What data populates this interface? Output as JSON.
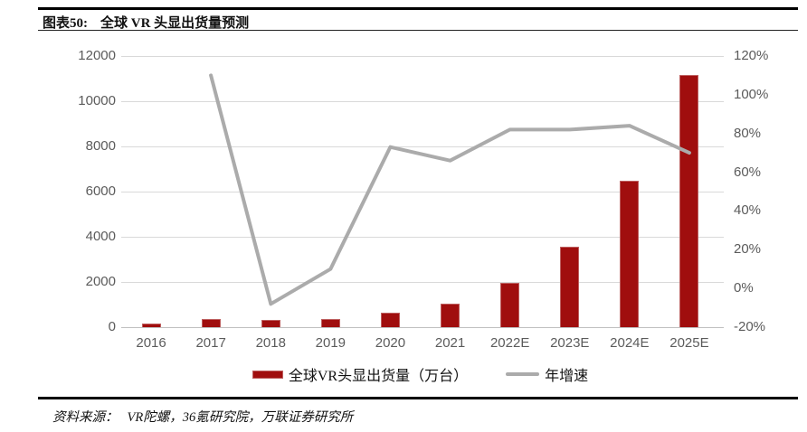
{
  "header": {
    "figure_label": "图表50:",
    "title": "全球 VR 头显出货量预测"
  },
  "chart_data": {
    "type": "combo",
    "categories": [
      "2016",
      "2017",
      "2018",
      "2019",
      "2020",
      "2021",
      "2022E",
      "2023E",
      "2024E",
      "2025E"
    ],
    "series": [
      {
        "name": "全球VR头显出货量（万台）",
        "type": "bar",
        "axis": "left",
        "color": "#a00e0e",
        "values": [
          160,
          370,
          340,
          375,
          630,
          1050,
          1950,
          3570,
          6500,
          11150
        ]
      },
      {
        "name": "年增速",
        "type": "line",
        "axis": "right",
        "color": "#ababab",
        "unit": "%",
        "values": [
          null,
          110,
          -8,
          10,
          73,
          66,
          82,
          82,
          84,
          70
        ]
      }
    ],
    "left_axis": {
      "min": 0,
      "max": 12000,
      "step": 2000,
      "labels": [
        "12000",
        "10000",
        "8000",
        "6000",
        "4000",
        "2000",
        "0"
      ]
    },
    "right_axis": {
      "min": -20,
      "max": 120,
      "step": 20,
      "labels": [
        "120%",
        "100%",
        "80%",
        "60%",
        "40%",
        "20%",
        "0%",
        "-20%"
      ]
    },
    "grid": true,
    "legend_position": "bottom",
    "colors": {
      "bar": "#a00e0e",
      "line": "#ababab",
      "grid": "#d9d9d9",
      "tick_text": "#5b5b5b"
    }
  },
  "footer": {
    "source_label": "资料来源：",
    "sources": "VR陀螺，36氪研究院，万联证券研究所"
  }
}
